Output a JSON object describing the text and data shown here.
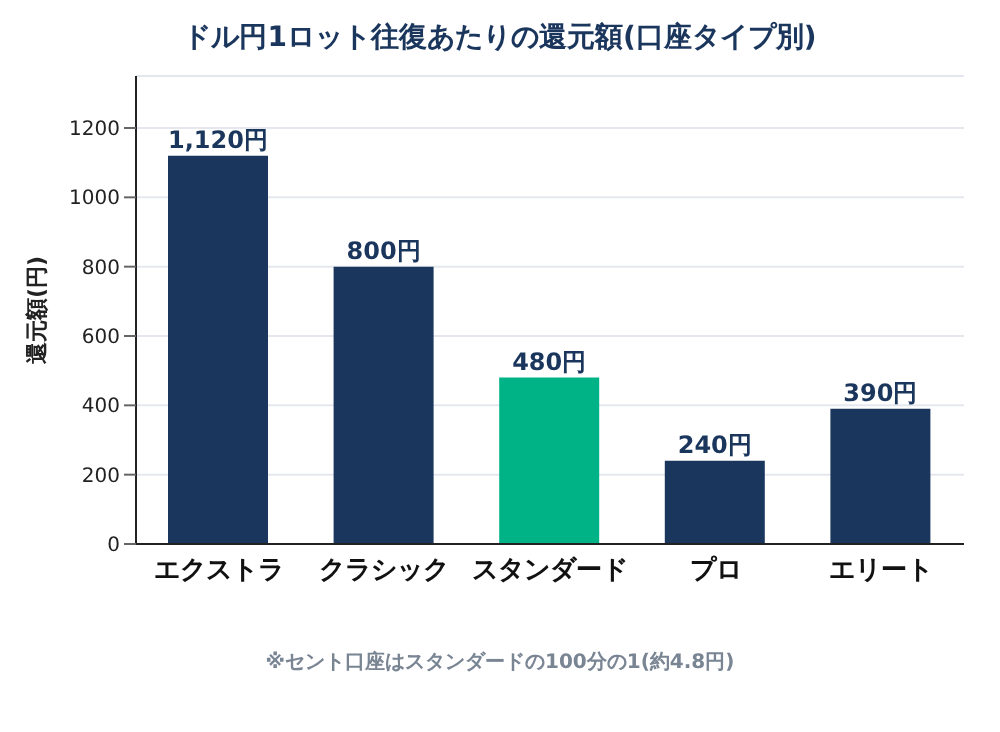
{
  "chart_data": {
    "type": "bar",
    "title": "ドル円1ロット往復あたりの還元額(口座タイプ別)",
    "ylabel": "還元額(円)",
    "categories": [
      "エクストラ",
      "クラシック",
      "スタンダード",
      "プロ",
      "エリート"
    ],
    "values": [
      1120,
      800,
      480,
      240,
      390
    ],
    "colors": [
      "#1b365d",
      "#1b365d",
      "#00b386",
      "#1b365d",
      "#1b365d"
    ],
    "value_labels": [
      "1,120円",
      "800円",
      "480円",
      "240円",
      "390円"
    ],
    "ylim": [
      0,
      1350
    ],
    "yticks": [
      0,
      200,
      400,
      600,
      800,
      1000,
      1200
    ],
    "grid": "y",
    "annotations": [
      "※セント口座はスタンダードの100分の1(約4.8円)"
    ]
  }
}
